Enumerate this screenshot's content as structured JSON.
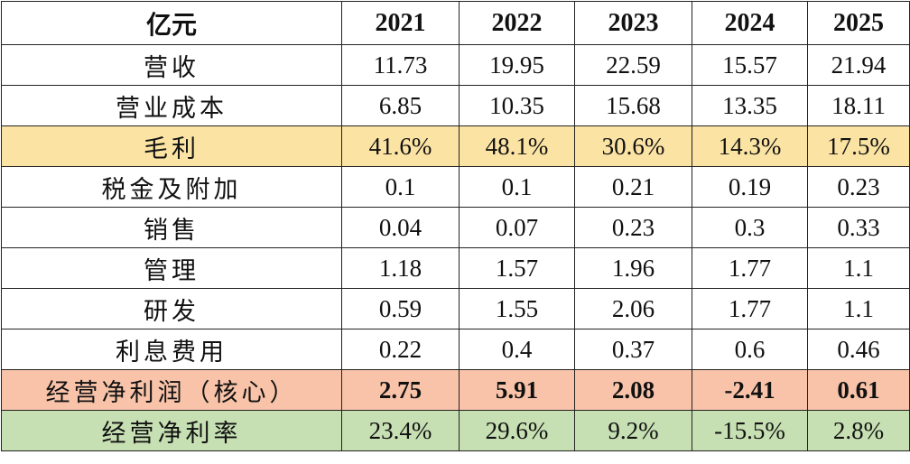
{
  "table": {
    "unit_label": "亿元",
    "years": [
      "2021",
      "2022",
      "2023",
      "2024",
      "2025"
    ],
    "rows": [
      {
        "label": "营收",
        "values": [
          "11.73",
          "19.95",
          "22.59",
          "15.57",
          "21.94"
        ]
      },
      {
        "label": "营业成本",
        "values": [
          "6.85",
          "10.35",
          "15.68",
          "13.35",
          "18.11"
        ]
      },
      {
        "label": "毛利",
        "values": [
          "41.6%",
          "48.1%",
          "30.6%",
          "14.3%",
          "17.5%"
        ]
      },
      {
        "label": "税金及附加",
        "values": [
          "0.1",
          "0.1",
          "0.21",
          "0.19",
          "0.23"
        ]
      },
      {
        "label": "销售",
        "values": [
          "0.04",
          "0.07",
          "0.23",
          "0.3",
          "0.33"
        ]
      },
      {
        "label": "管理",
        "values": [
          "1.18",
          "1.57",
          "1.96",
          "1.77",
          "1.1"
        ]
      },
      {
        "label": "研发",
        "values": [
          "0.59",
          "1.55",
          "2.06",
          "1.77",
          "1.1"
        ]
      },
      {
        "label": "利息费用",
        "values": [
          "0.22",
          "0.4",
          "0.37",
          "0.6",
          "0.46"
        ]
      },
      {
        "label": "经营净利润（核心）",
        "values": [
          "2.75",
          "5.91",
          "2.08",
          "-2.41",
          "0.61"
        ]
      },
      {
        "label": "经营净利率",
        "values": [
          "23.4%",
          "29.6%",
          "9.2%",
          "-15.5%",
          "2.8%"
        ]
      }
    ]
  },
  "colors": {
    "gross_margin_row": "#fbe3a4",
    "core_profit_row": "#f8c3a9",
    "profit_rate_row": "#c7e0b3",
    "border": "#222222"
  }
}
